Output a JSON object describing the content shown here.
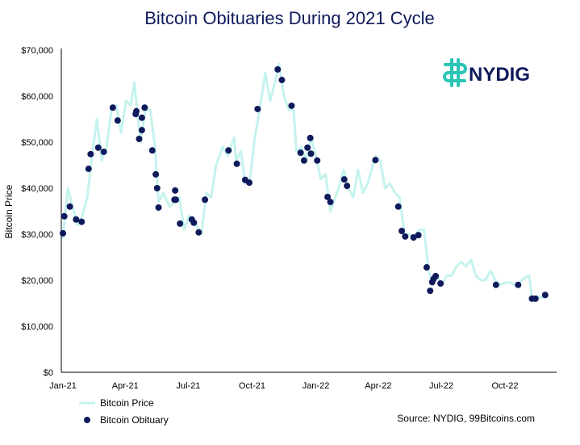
{
  "chart_data": {
    "type": "line",
    "title": "Bitcoin Obituaries During 2021 Cycle",
    "ylabel": "Bitcoin Price",
    "xlabel": "",
    "ylim": [
      0,
      70000
    ],
    "xlim": [
      "2021-01-01",
      "2022-12-01"
    ],
    "grid": false,
    "legend_placement": "bottom-left",
    "y_ticks": [
      0,
      10000,
      20000,
      30000,
      40000,
      50000,
      60000,
      70000
    ],
    "y_tick_labels": [
      "$0",
      "$10,000",
      "$20,000",
      "$30,000",
      "$40,000",
      "$50,000",
      "$60,000",
      "$70,000"
    ],
    "x_ticks": [
      "2021-01-01",
      "2021-04-01",
      "2021-07-01",
      "2021-10-01",
      "2022-01-01",
      "2022-04-01",
      "2022-07-01",
      "2022-10-01"
    ],
    "x_tick_labels": [
      "Jan-21",
      "Apr-21",
      "Jul-21",
      "Oct-21",
      "Jan-22",
      "Apr-22",
      "Jul-22",
      "Oct-22"
    ],
    "series": [
      {
        "name": "Bitcoin Price",
        "type": "line",
        "color": "#c5f3ee",
        "points": [
          [
            "2021-01-01",
            29000
          ],
          [
            "2021-01-08",
            40000
          ],
          [
            "2021-01-15",
            36000
          ],
          [
            "2021-01-22",
            32000
          ],
          [
            "2021-01-29",
            34000
          ],
          [
            "2021-02-05",
            38000
          ],
          [
            "2021-02-12",
            47000
          ],
          [
            "2021-02-19",
            55000
          ],
          [
            "2021-02-26",
            46000
          ],
          [
            "2021-03-05",
            49000
          ],
          [
            "2021-03-12",
            57000
          ],
          [
            "2021-03-19",
            58000
          ],
          [
            "2021-03-26",
            52000
          ],
          [
            "2021-04-02",
            59000
          ],
          [
            "2021-04-09",
            58000
          ],
          [
            "2021-04-14",
            63000
          ],
          [
            "2021-04-23",
            50000
          ],
          [
            "2021-04-30",
            57000
          ],
          [
            "2021-05-07",
            57000
          ],
          [
            "2021-05-14",
            49000
          ],
          [
            "2021-05-19",
            37000
          ],
          [
            "2021-05-26",
            39000
          ],
          [
            "2021-06-04",
            36000
          ],
          [
            "2021-06-11",
            37000
          ],
          [
            "2021-06-18",
            38000
          ],
          [
            "2021-06-25",
            31000
          ],
          [
            "2021-07-02",
            34000
          ],
          [
            "2021-07-09",
            33000
          ],
          [
            "2021-07-16",
            31000
          ],
          [
            "2021-07-20",
            30000
          ],
          [
            "2021-07-27",
            39000
          ],
          [
            "2021-08-03",
            38000
          ],
          [
            "2021-08-10",
            45000
          ],
          [
            "2021-08-20",
            49000
          ],
          [
            "2021-08-27",
            47000
          ],
          [
            "2021-09-05",
            51000
          ],
          [
            "2021-09-08",
            46000
          ],
          [
            "2021-09-15",
            48000
          ],
          [
            "2021-09-21",
            41000
          ],
          [
            "2021-09-28",
            42000
          ],
          [
            "2021-10-05",
            51000
          ],
          [
            "2021-10-12",
            57000
          ],
          [
            "2021-10-20",
            65000
          ],
          [
            "2021-10-27",
            59000
          ],
          [
            "2021-11-03",
            63000
          ],
          [
            "2021-11-09",
            67000
          ],
          [
            "2021-11-16",
            60000
          ],
          [
            "2021-11-23",
            57000
          ],
          [
            "2021-11-30",
            57000
          ],
          [
            "2021-12-04",
            48000
          ],
          [
            "2021-12-11",
            49000
          ],
          [
            "2021-12-18",
            46000
          ],
          [
            "2021-12-25",
            51000
          ],
          [
            "2022-01-01",
            47000
          ],
          [
            "2022-01-08",
            42000
          ],
          [
            "2022-01-15",
            43000
          ],
          [
            "2022-01-22",
            35000
          ],
          [
            "2022-01-29",
            38000
          ],
          [
            "2022-02-05",
            41000
          ],
          [
            "2022-02-10",
            44000
          ],
          [
            "2022-02-17",
            40000
          ],
          [
            "2022-02-24",
            38000
          ],
          [
            "2022-03-03",
            44000
          ],
          [
            "2022-03-10",
            39000
          ],
          [
            "2022-03-17",
            41000
          ],
          [
            "2022-03-28",
            47000
          ],
          [
            "2022-04-04",
            46000
          ],
          [
            "2022-04-11",
            40000
          ],
          [
            "2022-04-18",
            41000
          ],
          [
            "2022-04-25",
            39000
          ],
          [
            "2022-05-02",
            38000
          ],
          [
            "2022-05-09",
            30000
          ],
          [
            "2022-05-16",
            30000
          ],
          [
            "2022-05-23",
            29000
          ],
          [
            "2022-05-30",
            31000
          ],
          [
            "2022-06-06",
            31000
          ],
          [
            "2022-06-13",
            22000
          ],
          [
            "2022-06-18",
            19000
          ],
          [
            "2022-06-25",
            21000
          ],
          [
            "2022-07-02",
            19000
          ],
          [
            "2022-07-09",
            21000
          ],
          [
            "2022-07-16",
            21000
          ],
          [
            "2022-07-23",
            23000
          ],
          [
            "2022-07-30",
            24000
          ],
          [
            "2022-08-06",
            23000
          ],
          [
            "2022-08-13",
            24500
          ],
          [
            "2022-08-20",
            21000
          ],
          [
            "2022-08-27",
            20000
          ],
          [
            "2022-09-03",
            20000
          ],
          [
            "2022-09-10",
            22000
          ],
          [
            "2022-09-17",
            20000
          ],
          [
            "2022-09-24",
            19000
          ],
          [
            "2022-10-01",
            19500
          ],
          [
            "2022-10-08",
            19500
          ],
          [
            "2022-10-15",
            19000
          ],
          [
            "2022-10-22",
            19500
          ],
          [
            "2022-10-29",
            20500
          ],
          [
            "2022-11-05",
            21000
          ],
          [
            "2022-11-09",
            16000
          ],
          [
            "2022-11-16",
            16500
          ],
          [
            "2022-11-23",
            16200
          ],
          [
            "2022-11-28",
            16500
          ]
        ]
      },
      {
        "name": "Bitcoin Obituary",
        "type": "scatter",
        "color": "#0f1a5c",
        "points": [
          [
            "2021-01-01",
            30200
          ],
          [
            "2021-01-03",
            33900
          ],
          [
            "2021-01-11",
            36000
          ],
          [
            "2021-01-20",
            33200
          ],
          [
            "2021-01-28",
            32700
          ],
          [
            "2021-02-07",
            44200
          ],
          [
            "2021-02-10",
            47400
          ],
          [
            "2021-02-21",
            48800
          ],
          [
            "2021-03-01",
            47900
          ],
          [
            "2021-03-14",
            57500
          ],
          [
            "2021-03-21",
            54700
          ],
          [
            "2021-04-16",
            56100
          ],
          [
            "2021-04-17",
            56700
          ],
          [
            "2021-04-21",
            50700
          ],
          [
            "2021-04-25",
            55300
          ],
          [
            "2021-04-25",
            52600
          ],
          [
            "2021-04-29",
            57500
          ],
          [
            "2021-05-10",
            48200
          ],
          [
            "2021-05-15",
            43000
          ],
          [
            "2021-05-17",
            40000
          ],
          [
            "2021-05-19",
            35800
          ],
          [
            "2021-06-11",
            37500
          ],
          [
            "2021-06-12",
            39500
          ],
          [
            "2021-06-13",
            37500
          ],
          [
            "2021-06-19",
            32300
          ],
          [
            "2021-07-06",
            33200
          ],
          [
            "2021-07-09",
            32500
          ],
          [
            "2021-07-16",
            30400
          ],
          [
            "2021-07-25",
            37500
          ],
          [
            "2021-08-28",
            48200
          ],
          [
            "2021-09-09",
            45300
          ],
          [
            "2021-09-21",
            41800
          ],
          [
            "2021-09-27",
            41200
          ],
          [
            "2021-10-09",
            57200
          ],
          [
            "2021-11-07",
            65800
          ],
          [
            "2021-11-13",
            63500
          ],
          [
            "2021-11-27",
            57900
          ],
          [
            "2021-12-10",
            47700
          ],
          [
            "2021-12-15",
            46000
          ],
          [
            "2021-12-20",
            48800
          ],
          [
            "2021-12-24",
            50900
          ],
          [
            "2021-12-25",
            47500
          ],
          [
            "2022-01-03",
            46000
          ],
          [
            "2022-01-18",
            38100
          ],
          [
            "2022-01-22",
            37000
          ],
          [
            "2022-02-11",
            41900
          ],
          [
            "2022-02-15",
            40500
          ],
          [
            "2022-03-28",
            46100
          ],
          [
            "2022-04-30",
            36000
          ],
          [
            "2022-05-05",
            30700
          ],
          [
            "2022-05-10",
            29500
          ],
          [
            "2022-05-22",
            29300
          ],
          [
            "2022-05-29",
            29800
          ],
          [
            "2022-06-10",
            22800
          ],
          [
            "2022-06-15",
            17700
          ],
          [
            "2022-06-18",
            19600
          ],
          [
            "2022-06-20",
            20300
          ],
          [
            "2022-06-23",
            20900
          ],
          [
            "2022-06-30",
            19300
          ],
          [
            "2022-09-18",
            19000
          ],
          [
            "2022-10-20",
            19000
          ],
          [
            "2022-11-09",
            16000
          ],
          [
            "2022-11-14",
            16000
          ],
          [
            "2022-11-28",
            16800
          ]
        ]
      }
    ],
    "source": "Source: NYDIG, 99Bitcoins.com"
  },
  "logo": {
    "text": "NYDIG",
    "color": "#0f1a5c",
    "mark_color": "#2cc5b5"
  }
}
